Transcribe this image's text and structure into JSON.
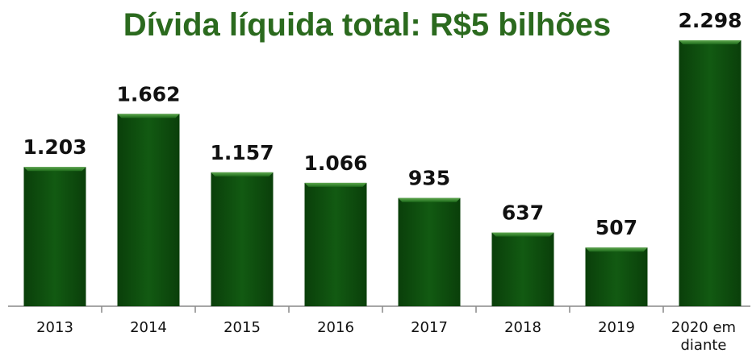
{
  "chart_data": {
    "type": "bar",
    "title": "Dívida líquida total: R$5 bilhões",
    "categories": [
      "2013",
      "2014",
      "2015",
      "2016",
      "2017",
      "2018",
      "2019",
      "2020 em diante"
    ],
    "values": [
      1203,
      1662,
      1157,
      1066,
      935,
      637,
      507,
      2298
    ],
    "value_labels": [
      "1.203",
      "1.662",
      "1.157",
      "1.066",
      "935",
      "637",
      "507",
      "2.298"
    ],
    "color": "#0f4f0f"
  }
}
